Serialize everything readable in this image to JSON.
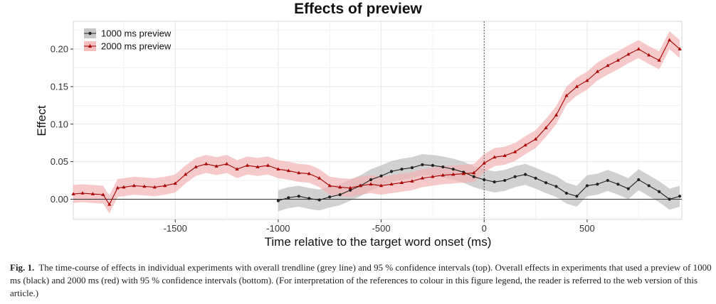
{
  "chart_data": {
    "type": "line",
    "title": "Effects of preview",
    "xlabel": "Time relative to the target word onset (ms)",
    "ylabel": "Effect",
    "xlim": [
      -1995,
      960
    ],
    "ylim": [
      -0.027,
      0.237
    ],
    "xticks": [
      -1500,
      -1000,
      -500,
      0,
      500
    ],
    "yticks": [
      0.0,
      0.05,
      0.1,
      0.15,
      0.2
    ],
    "xtick_labels": [
      "-1500",
      "-1000",
      "-500",
      "0",
      "500"
    ],
    "ytick_labels": [
      "0.00",
      "0.05",
      "0.10",
      "0.15",
      "0.20"
    ],
    "grid": true,
    "legend_position": "top-left",
    "reference_lines": {
      "vertical_x": 0,
      "horizontal_y": 0
    },
    "series": [
      {
        "name": "1000 ms preview",
        "color": "#222222",
        "band_color": "#bdbdbd",
        "marker": "circle",
        "ci_halfwidth": 0.014,
        "points": [
          [
            -1000,
            -0.002
          ],
          [
            -950,
            0.002
          ],
          [
            -900,
            0.004
          ],
          [
            -850,
            0.001
          ],
          [
            -800,
            -0.001
          ],
          [
            -750,
            0.003
          ],
          [
            -700,
            0.006
          ],
          [
            -650,
            0.012
          ],
          [
            -600,
            0.018
          ],
          [
            -550,
            0.026
          ],
          [
            -500,
            0.031
          ],
          [
            -450,
            0.037
          ],
          [
            -400,
            0.04
          ],
          [
            -350,
            0.042
          ],
          [
            -300,
            0.046
          ],
          [
            -250,
            0.045
          ],
          [
            -200,
            0.043
          ],
          [
            -150,
            0.04
          ],
          [
            -100,
            0.036
          ],
          [
            -50,
            0.03
          ],
          [
            0,
            0.026
          ],
          [
            50,
            0.023
          ],
          [
            100,
            0.025
          ],
          [
            150,
            0.03
          ],
          [
            200,
            0.033
          ],
          [
            250,
            0.028
          ],
          [
            300,
            0.022
          ],
          [
            350,
            0.017
          ],
          [
            400,
            0.008
          ],
          [
            450,
            0.004
          ],
          [
            500,
            0.018
          ],
          [
            550,
            0.02
          ],
          [
            600,
            0.025
          ],
          [
            650,
            0.02
          ],
          [
            700,
            0.014
          ],
          [
            750,
            0.026
          ],
          [
            800,
            0.018
          ],
          [
            850,
            0.01
          ],
          [
            900,
            0.0
          ],
          [
            950,
            0.004
          ]
        ]
      },
      {
        "name": "2000 ms preview",
        "color": "#a80000",
        "band_color": "#f2b3b3",
        "marker": "triangle",
        "ci_halfwidth": 0.012,
        "points": [
          [
            -1995,
            0.007
          ],
          [
            -1950,
            0.008
          ],
          [
            -1900,
            0.007
          ],
          [
            -1850,
            0.006
          ],
          [
            -1820,
            -0.007
          ],
          [
            -1780,
            0.015
          ],
          [
            -1750,
            0.016
          ],
          [
            -1700,
            0.018
          ],
          [
            -1650,
            0.017
          ],
          [
            -1600,
            0.016
          ],
          [
            -1550,
            0.018
          ],
          [
            -1500,
            0.021
          ],
          [
            -1450,
            0.033
          ],
          [
            -1400,
            0.043
          ],
          [
            -1350,
            0.047
          ],
          [
            -1300,
            0.044
          ],
          [
            -1250,
            0.047
          ],
          [
            -1200,
            0.04
          ],
          [
            -1150,
            0.045
          ],
          [
            -1100,
            0.043
          ],
          [
            -1050,
            0.045
          ],
          [
            -1000,
            0.04
          ],
          [
            -950,
            0.038
          ],
          [
            -900,
            0.035
          ],
          [
            -850,
            0.034
          ],
          [
            -800,
            0.028
          ],
          [
            -750,
            0.018
          ],
          [
            -700,
            0.016
          ],
          [
            -650,
            0.015
          ],
          [
            -600,
            0.018
          ],
          [
            -550,
            0.02
          ],
          [
            -500,
            0.018
          ],
          [
            -450,
            0.02
          ],
          [
            -400,
            0.022
          ],
          [
            -350,
            0.024
          ],
          [
            -300,
            0.028
          ],
          [
            -250,
            0.03
          ],
          [
            -200,
            0.032
          ],
          [
            -150,
            0.033
          ],
          [
            -100,
            0.034
          ],
          [
            -50,
            0.035
          ],
          [
            0,
            0.048
          ],
          [
            50,
            0.056
          ],
          [
            100,
            0.058
          ],
          [
            150,
            0.063
          ],
          [
            200,
            0.072
          ],
          [
            250,
            0.08
          ],
          [
            300,
            0.095
          ],
          [
            350,
            0.112
          ],
          [
            400,
            0.138
          ],
          [
            450,
            0.15
          ],
          [
            500,
            0.158
          ],
          [
            550,
            0.17
          ],
          [
            600,
            0.178
          ],
          [
            650,
            0.185
          ],
          [
            700,
            0.193
          ],
          [
            750,
            0.2
          ],
          [
            800,
            0.192
          ],
          [
            850,
            0.185
          ],
          [
            900,
            0.212
          ],
          [
            950,
            0.2
          ]
        ]
      }
    ]
  },
  "caption": {
    "label": "Fig. 1.",
    "text": "The time-course of effects in individual experiments with overall trendline (grey line) and 95 % confidence intervals (top). Overall effects in experiments that used a preview of 1000 ms (black) and 2000 ms (red) with 95 % confidence intervals (bottom). (For interpretation of the references to colour in this figure legend, the reader is referred to the web version of this article.)"
  }
}
